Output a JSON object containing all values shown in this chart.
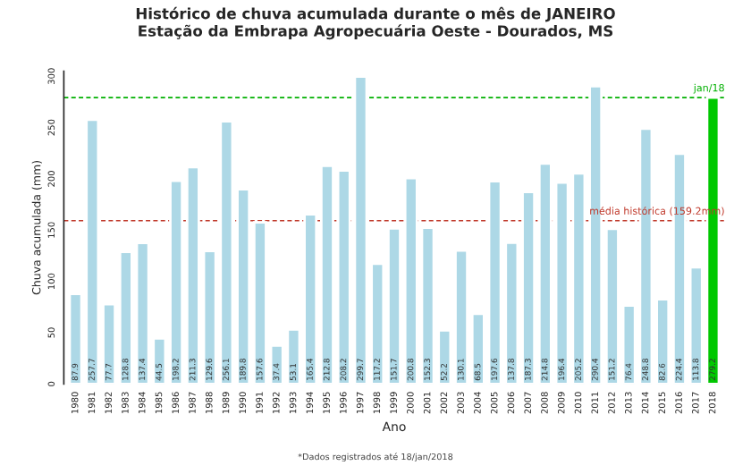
{
  "chart_data": {
    "type": "bar",
    "title": "Histórico de chuva acumulada durante o mês de JANEIRO\nEstação da Embrapa Agropecuária Oeste - Dourados, MS",
    "xlabel": "Ano",
    "ylabel": "Chuva acumulada (mm)",
    "categories": [
      "1980",
      "1981",
      "1982",
      "1983",
      "1984",
      "1985",
      "1986",
      "1987",
      "1988",
      "1989",
      "1990",
      "1991",
      "1992",
      "1993",
      "1994",
      "1995",
      "1996",
      "1997",
      "1998",
      "1999",
      "2000",
      "2001",
      "2002",
      "2003",
      "2004",
      "2005",
      "2006",
      "2007",
      "2008",
      "2009",
      "2010",
      "2011",
      "2012",
      "2013",
      "2014",
      "2015",
      "2016",
      "2017",
      "2018"
    ],
    "values": [
      87.9,
      257.7,
      77.7,
      128.8,
      137.4,
      44.5,
      198.2,
      211.3,
      129.6,
      256.1,
      189.8,
      157.6,
      37.4,
      53.1,
      165.4,
      212.8,
      208.2,
      299.7,
      117.2,
      151.7,
      200.8,
      152.3,
      52.2,
      130.1,
      68.5,
      197.6,
      137.8,
      187.3,
      214.8,
      196.4,
      205.2,
      290.4,
      151.2,
      76.4,
      248.8,
      82.6,
      224.4,
      113.8,
      279.2
    ],
    "colors": [
      "#add8e6",
      "#add8e6",
      "#add8e6",
      "#add8e6",
      "#add8e6",
      "#add8e6",
      "#add8e6",
      "#add8e6",
      "#add8e6",
      "#add8e6",
      "#add8e6",
      "#add8e6",
      "#add8e6",
      "#add8e6",
      "#add8e6",
      "#add8e6",
      "#add8e6",
      "#add8e6",
      "#add8e6",
      "#add8e6",
      "#add8e6",
      "#add8e6",
      "#add8e6",
      "#add8e6",
      "#add8e6",
      "#add8e6",
      "#add8e6",
      "#add8e6",
      "#add8e6",
      "#add8e6",
      "#add8e6",
      "#add8e6",
      "#add8e6",
      "#add8e6",
      "#add8e6",
      "#add8e6",
      "#add8e6",
      "#add8e6",
      "#00c800"
    ],
    "data_labels": true,
    "ylim": [
      0,
      305
    ],
    "yticks": [
      0,
      50,
      100,
      150,
      200,
      250,
      300
    ],
    "ref_lines": [
      {
        "axis": "y",
        "value": 279.2,
        "label": "jan/18",
        "color": "#00b000",
        "line_style": "dashed"
      },
      {
        "axis": "y",
        "value": 159.2,
        "label": "média histórica (159.2mm)",
        "color": "#c0392b",
        "line_style": "dashed"
      }
    ],
    "annotations": [
      "*Dados registrados até 18/jan/2018"
    ],
    "grid": false,
    "legend": false
  }
}
